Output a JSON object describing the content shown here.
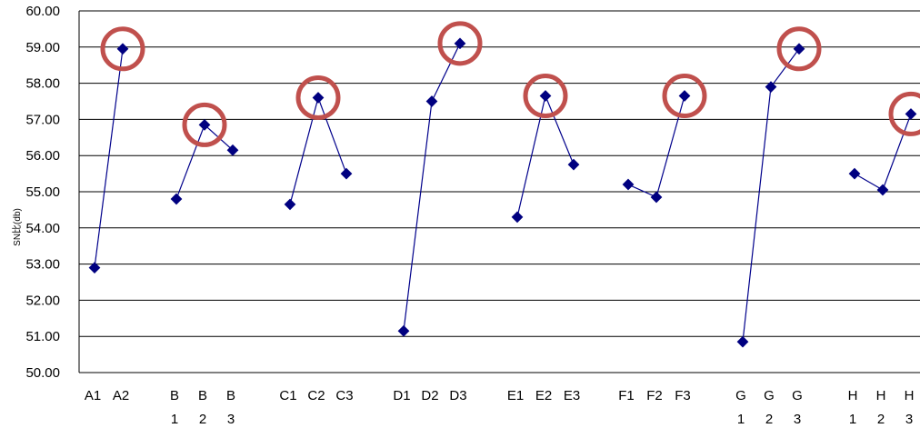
{
  "chart_data": {
    "type": "line",
    "title": "",
    "xlabel": "",
    "ylabel": "SN比(db)",
    "ylim": [
      50,
      60
    ],
    "y_ticks": [
      "50.00",
      "51.00",
      "52.00",
      "53.00",
      "54.00",
      "55.00",
      "56.00",
      "57.00",
      "58.00",
      "59.00",
      "60.00"
    ],
    "grid": true,
    "colors": {
      "line": "#00008b",
      "marker": "#000080",
      "circle": "#c0504d",
      "grid": "#000000"
    },
    "groups": [
      {
        "labels": [
          "A1",
          "A2"
        ],
        "values": [
          52.9,
          58.95
        ],
        "best": 1
      },
      {
        "labels": [
          "B\n1",
          "B\n2",
          "B\n3"
        ],
        "values": [
          54.8,
          56.85,
          56.15
        ],
        "best": 1
      },
      {
        "labels": [
          "C1",
          "C2",
          "C3"
        ],
        "values": [
          54.65,
          57.6,
          55.5
        ],
        "best": 1
      },
      {
        "labels": [
          "D1",
          "D2",
          "D3"
        ],
        "values": [
          51.15,
          57.5,
          59.1
        ],
        "best": 2
      },
      {
        "labels": [
          "E1",
          "E2",
          "E3"
        ],
        "values": [
          54.3,
          57.65,
          55.75
        ],
        "best": 1
      },
      {
        "labels": [
          "F1",
          "F2",
          "F3"
        ],
        "values": [
          55.2,
          54.85,
          57.65
        ],
        "best": 2
      },
      {
        "labels": [
          "G\n1",
          "G\n2",
          "G\n3"
        ],
        "values": [
          50.85,
          57.9,
          58.95
        ],
        "best": 2
      },
      {
        "labels": [
          "H\n1",
          "H\n2",
          "H\n3"
        ],
        "values": [
          55.5,
          55.05,
          57.15
        ],
        "best": 2
      }
    ]
  }
}
